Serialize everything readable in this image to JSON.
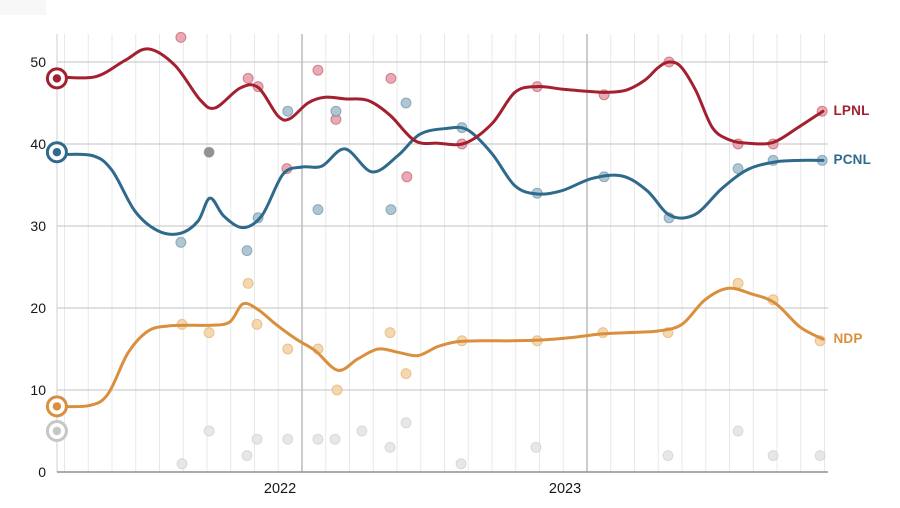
{
  "chart_data": {
    "type": "line",
    "description": "Polling average trend lines with individual poll scatter dots for three parties (LPNL, PCNL, NDP) plus minor/other polling dots, starting from election-result markers in early 2021 and running through late 2023.",
    "x_axis": {
      "t_min": 2021.14,
      "t_max": 2023.8333,
      "month_gridlines": true,
      "year_lines": [
        2022,
        2023
      ],
      "year_labels": [
        {
          "text": "2022",
          "t": 2021.923
        },
        {
          "text": "2023",
          "t": 2022.923
        }
      ]
    },
    "y_axis": {
      "ticks": [
        0,
        10,
        20,
        30,
        40,
        50
      ],
      "min": 0,
      "max": 53.5
    },
    "election_start": {
      "t": 2021.14,
      "markers": [
        {
          "series": "LPNL",
          "value": 48,
          "color": "#A2202F"
        },
        {
          "series": "PCNL",
          "value": 39,
          "color": "#2F6A8C"
        },
        {
          "series": "NDP",
          "value": 8,
          "color": "#D98F3E"
        },
        {
          "series": "Others",
          "value": 5,
          "color": "#C6C6C6"
        }
      ]
    },
    "series": [
      {
        "name": "LPNL",
        "label": "LPNL",
        "color": "#A2202F",
        "point_color": "#E8A1AB",
        "trend": [
          [
            2021.14,
            48.2
          ],
          [
            2021.274,
            48.2
          ],
          [
            2021.379,
            50.2
          ],
          [
            2021.46,
            51.6
          ],
          [
            2021.554,
            49.6
          ],
          [
            2021.642,
            45.4
          ],
          [
            2021.695,
            44.4
          ],
          [
            2021.782,
            46.8
          ],
          [
            2021.846,
            46.9
          ],
          [
            2021.916,
            43.4
          ],
          [
            2021.958,
            43.1
          ],
          [
            2022.021,
            45.0
          ],
          [
            2022.081,
            45.7
          ],
          [
            2022.151,
            45.5
          ],
          [
            2022.232,
            45.3
          ],
          [
            2022.309,
            43.5
          ],
          [
            2022.396,
            40.4
          ],
          [
            2022.477,
            40.1
          ],
          [
            2022.572,
            40.1
          ],
          [
            2022.667,
            42.5
          ],
          [
            2022.747,
            46.3
          ],
          [
            2022.825,
            47.0
          ],
          [
            2022.912,
            46.7
          ],
          [
            2023.011,
            46.4
          ],
          [
            2023.077,
            46.3
          ],
          [
            2023.14,
            46.6
          ],
          [
            2023.204,
            47.8
          ],
          [
            2023.249,
            49.3
          ],
          [
            2023.288,
            50.0
          ],
          [
            2023.33,
            49.4
          ],
          [
            2023.382,
            46.5
          ],
          [
            2023.44,
            42.0
          ],
          [
            2023.5,
            40.5
          ],
          [
            2023.565,
            40.1
          ],
          [
            2023.653,
            40.2
          ],
          [
            2023.74,
            42.0
          ],
          [
            2023.828,
            44.0
          ]
        ],
        "polls": [
          [
            2021.575,
            53
          ],
          [
            2021.811,
            48
          ],
          [
            2021.846,
            47
          ],
          [
            2021.947,
            37
          ],
          [
            2022.056,
            49
          ],
          [
            2022.119,
            43
          ],
          [
            2022.312,
            48
          ],
          [
            2022.368,
            36
          ],
          [
            2022.561,
            40
          ],
          [
            2022.825,
            47
          ],
          [
            2023.06,
            46
          ],
          [
            2023.288,
            50
          ],
          [
            2023.53,
            40
          ],
          [
            2023.653,
            40
          ],
          [
            2023.825,
            44
          ]
        ]
      },
      {
        "name": "PCNL",
        "label": "PCNL",
        "color": "#2F6A8C",
        "point_color": "#A7C1CE",
        "trend": [
          [
            2021.14,
            38.7
          ],
          [
            2021.263,
            38.6
          ],
          [
            2021.333,
            36.8
          ],
          [
            2021.414,
            31.8
          ],
          [
            2021.495,
            29.4
          ],
          [
            2021.572,
            29.1
          ],
          [
            2021.635,
            30.6
          ],
          [
            2021.677,
            33.4
          ],
          [
            2021.726,
            31.2
          ],
          [
            2021.793,
            29.8
          ],
          [
            2021.86,
            31.3
          ],
          [
            2021.933,
            36.3
          ],
          [
            2022.0,
            37.2
          ],
          [
            2022.07,
            37.3
          ],
          [
            2022.151,
            39.4
          ],
          [
            2022.246,
            36.6
          ],
          [
            2022.337,
            38.6
          ],
          [
            2022.414,
            41.2
          ],
          [
            2022.509,
            41.9
          ],
          [
            2022.582,
            41.7
          ],
          [
            2022.667,
            38.8
          ],
          [
            2022.747,
            34.9
          ],
          [
            2022.825,
            33.9
          ],
          [
            2022.912,
            34.3
          ],
          [
            2023.018,
            35.8
          ],
          [
            2023.123,
            36.1
          ],
          [
            2023.211,
            34.3
          ],
          [
            2023.291,
            31.3
          ],
          [
            2023.379,
            31.4
          ],
          [
            2023.474,
            34.6
          ],
          [
            2023.565,
            36.9
          ],
          [
            2023.66,
            37.8
          ],
          [
            2023.747,
            38.0
          ],
          [
            2023.828,
            38.0
          ]
        ],
        "polls": [
          [
            2021.575,
            28
          ],
          [
            2021.807,
            27
          ],
          [
            2021.846,
            31
          ],
          [
            2021.95,
            44
          ],
          [
            2022.056,
            32
          ],
          [
            2022.119,
            44
          ],
          [
            2022.312,
            32
          ],
          [
            2022.365,
            45
          ],
          [
            2022.561,
            42
          ],
          [
            2022.825,
            34
          ],
          [
            2023.06,
            36
          ],
          [
            2023.288,
            31
          ],
          [
            2023.53,
            37
          ],
          [
            2023.653,
            38
          ],
          [
            2023.825,
            38
          ]
        ]
      },
      {
        "name": "NDP",
        "label": "NDP",
        "color": "#D98F3E",
        "point_color": "#F2D4A7",
        "trend": [
          [
            2021.14,
            8.0
          ],
          [
            2021.253,
            8.1
          ],
          [
            2021.319,
            9.5
          ],
          [
            2021.389,
            14.5
          ],
          [
            2021.46,
            17.2
          ],
          [
            2021.53,
            17.8
          ],
          [
            2021.614,
            17.9
          ],
          [
            2021.684,
            17.9
          ],
          [
            2021.747,
            18.3
          ],
          [
            2021.793,
            20.5
          ],
          [
            2021.846,
            19.8
          ],
          [
            2021.905,
            18.1
          ],
          [
            2021.975,
            16.3
          ],
          [
            2022.046,
            14.8
          ],
          [
            2022.126,
            12.4
          ],
          [
            2022.196,
            13.8
          ],
          [
            2022.267,
            15.0
          ],
          [
            2022.337,
            14.6
          ],
          [
            2022.407,
            14.2
          ],
          [
            2022.477,
            15.3
          ],
          [
            2022.547,
            15.9
          ],
          [
            2022.632,
            16.0
          ],
          [
            2022.737,
            16.0
          ],
          [
            2022.842,
            16.1
          ],
          [
            2022.947,
            16.4
          ],
          [
            2023.039,
            16.8
          ],
          [
            2023.144,
            17.0
          ],
          [
            2023.249,
            17.2
          ],
          [
            2023.333,
            18.0
          ],
          [
            2023.414,
            21.0
          ],
          [
            2023.495,
            22.4
          ],
          [
            2023.579,
            21.7
          ],
          [
            2023.66,
            20.6
          ],
          [
            2023.747,
            17.7
          ],
          [
            2023.828,
            16.2
          ]
        ],
        "polls": [
          [
            2021.579,
            18
          ],
          [
            2021.674,
            17
          ],
          [
            2021.811,
            23
          ],
          [
            2021.842,
            18
          ],
          [
            2021.95,
            15
          ],
          [
            2022.056,
            15
          ],
          [
            2022.123,
            10
          ],
          [
            2022.309,
            17
          ],
          [
            2022.365,
            12
          ],
          [
            2022.561,
            16
          ],
          [
            2022.825,
            16
          ],
          [
            2023.056,
            17
          ],
          [
            2023.284,
            17
          ],
          [
            2023.53,
            23
          ],
          [
            2023.653,
            21
          ],
          [
            2023.818,
            16
          ]
        ]
      },
      {
        "name": "Others",
        "label": "",
        "color": "#BDBDBD",
        "point_color": "#E4E4E4",
        "trend": [],
        "polls": [
          [
            2021.579,
            1
          ],
          [
            2021.674,
            5
          ],
          [
            2021.807,
            2
          ],
          [
            2021.842,
            4
          ],
          [
            2021.95,
            4
          ],
          [
            2022.056,
            4
          ],
          [
            2022.116,
            4
          ],
          [
            2022.21,
            5
          ],
          [
            2022.309,
            3
          ],
          [
            2022.365,
            6
          ],
          [
            2022.558,
            1
          ],
          [
            2022.821,
            3
          ],
          [
            2023.284,
            2
          ],
          [
            2023.53,
            5
          ],
          [
            2023.653,
            2
          ],
          [
            2023.818,
            2
          ]
        ]
      }
    ],
    "outlier_point": {
      "t": 2021.674,
      "value": 39,
      "color": "#8D8D8D"
    }
  }
}
